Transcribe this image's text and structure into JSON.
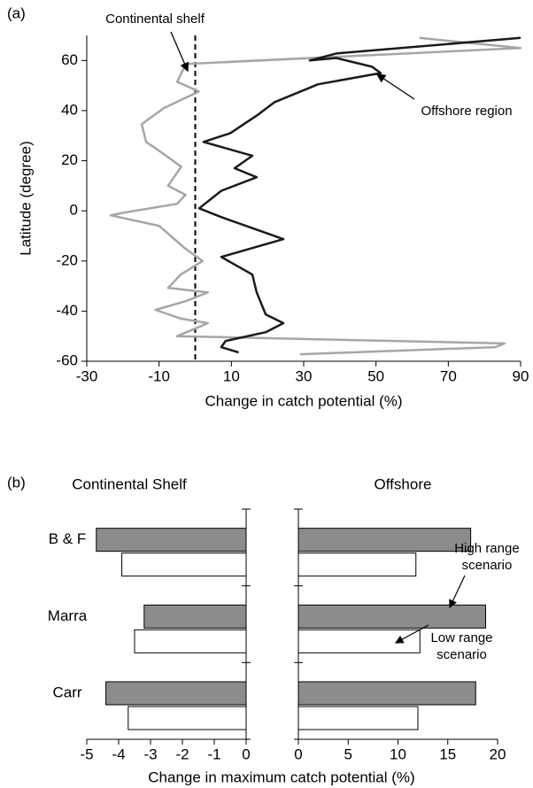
{
  "chart_data": [
    {
      "type": "line",
      "panel_label": "(a)",
      "xlabel": "Change in catch potential (%)",
      "ylabel": "Latitude (degree)",
      "xlim": [
        -30,
        90
      ],
      "xticks": [
        -30,
        -10,
        10,
        30,
        50,
        70,
        90
      ],
      "ylim": [
        -60,
        70
      ],
      "yticks": [
        -60,
        -40,
        -20,
        0,
        20,
        40,
        60
      ],
      "reference_x": 0,
      "annotations": [
        "Continental shelf",
        "Offshore region"
      ],
      "series": [
        {
          "color": "#a6a6a6",
          "latitude": [
            69,
            65,
            58.6,
            51.5,
            47.6,
            41,
            34.6,
            27.5,
            24,
            17.6,
            10,
            6.4,
            2.8,
            -0.7,
            -1.8,
            -6,
            -14.8,
            -20,
            -25.4,
            -30.7,
            -32.5,
            -36,
            -39.5,
            -43,
            -44.8,
            -50,
            -52.9,
            -54.4,
            -57.2
          ],
          "values": [
            62,
            90,
            -2.6,
            -5,
            1,
            -8.7,
            -14.8,
            -13.6,
            -10,
            -3.9,
            -7.5,
            -2.7,
            -5,
            -19.7,
            -23.4,
            -10,
            -3,
            2,
            -4,
            -7.5,
            3.5,
            -2.6,
            -11,
            -3.9,
            3.5,
            -5,
            85.6,
            83,
            29
          ]
        },
        {
          "color": "#1a1a1a",
          "latitude": [
            69,
            62.8,
            60,
            61,
            57.5,
            55,
            50.5,
            43.4,
            38,
            31,
            27.5,
            22,
            17,
            13.4,
            8,
            1,
            -2.5,
            -11.3,
            -18.4,
            -25.4,
            -32.5,
            -41.3,
            -44.8,
            -48.4,
            -51.9,
            -54.4,
            -56.5
          ],
          "values": [
            90,
            39,
            31.7,
            39,
            48.9,
            51.3,
            34,
            22,
            17,
            9.7,
            2.3,
            15.8,
            10.9,
            17,
            7.2,
            1.1,
            7.2,
            24.4,
            7.2,
            15.8,
            17,
            19.5,
            24.4,
            19.5,
            8.4,
            7.2,
            12
          ]
        }
      ]
    },
    {
      "type": "bar",
      "panel_label": "(b)",
      "title": "Continental Shelf",
      "xlabel": "Change in maximum catch potential (%)",
      "categories": [
        "B & F",
        "Marra",
        "Carr"
      ],
      "xlim": [
        -5,
        0
      ],
      "xticks": [
        -5,
        -4,
        -3,
        -2,
        -1,
        0
      ],
      "series": [
        {
          "color": "#8c8c8c",
          "values": [
            -4.7,
            -3.2,
            -4.4
          ]
        },
        {
          "color": "#ffffff",
          "values": [
            -3.9,
            -3.5,
            -3.7
          ]
        }
      ]
    },
    {
      "type": "bar",
      "title": "Offshore",
      "xlim": [
        0,
        20
      ],
      "xticks": [
        0,
        5,
        10,
        15,
        20
      ],
      "series": [
        {
          "name": "High range scenario",
          "color": "#8c8c8c",
          "values": [
            17.3,
            18.8,
            17.8
          ]
        },
        {
          "name": "Low range scenario",
          "color": "#ffffff",
          "values": [
            11.8,
            12.2,
            12.0
          ]
        }
      ]
    }
  ]
}
